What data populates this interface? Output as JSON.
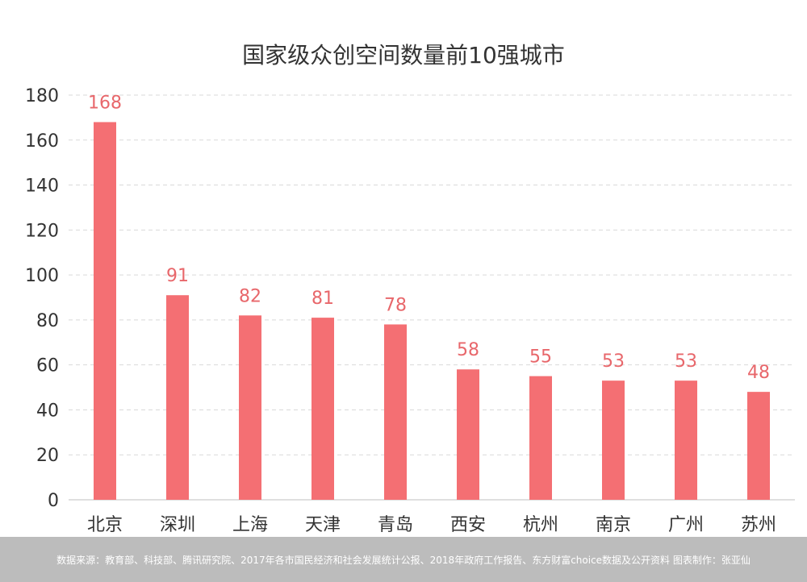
{
  "chart_data": {
    "type": "bar",
    "title": "国家级众创空间数量前10强城市",
    "categories": [
      "北京",
      "深圳",
      "上海",
      "天津",
      "青岛",
      "西安",
      "杭州",
      "南京",
      "广州",
      "苏州"
    ],
    "values": [
      168,
      91,
      82,
      81,
      78,
      58,
      55,
      53,
      53,
      48
    ],
    "ylim": [
      0,
      180
    ],
    "yticks": [
      0,
      20,
      40,
      60,
      80,
      100,
      120,
      140,
      160,
      180
    ],
    "grid": true,
    "colors": {
      "bar": "#f46f73",
      "value_label": "#e8676b",
      "grid": "#d9d9d9",
      "axis_text": "#333333"
    }
  },
  "footer": {
    "source": "数据来源：教育部、科技部、腾讯研究院、2017年各市国民经济和社会发展统计公报、2018年政府工作报告、东方财富choice数据及公开资料  图表制作：张亚仙"
  }
}
